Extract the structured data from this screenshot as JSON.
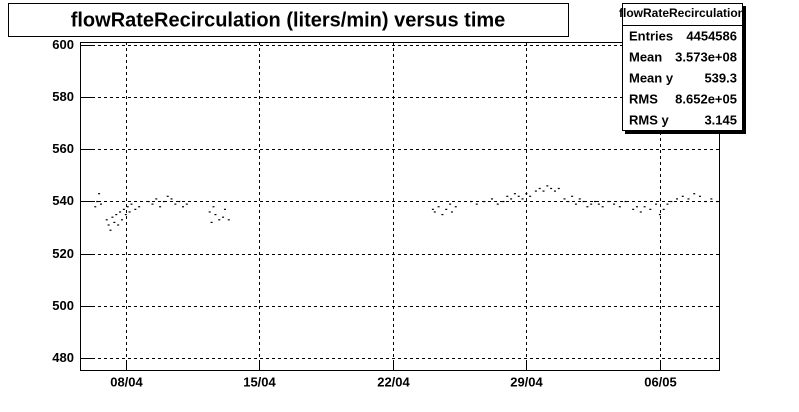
{
  "chart_data": {
    "type": "scatter",
    "title": "flowRateRecirculation (liters/min) versus time",
    "x": [
      6.4,
      6.5,
      6.6,
      6.7,
      7.0,
      7.1,
      7.2,
      7.3,
      7.4,
      7.5,
      7.6,
      7.7,
      7.8,
      7.9,
      8.0,
      8.1,
      8.2,
      8.3,
      8.5,
      8.7,
      9.2,
      9.4,
      9.6,
      9.8,
      10.0,
      10.2,
      10.4,
      10.6,
      10.8,
      11.0,
      11.2,
      12.4,
      12.5,
      12.6,
      12.7,
      12.9,
      13.1,
      13.2,
      13.4,
      24.1,
      24.2,
      24.4,
      24.6,
      24.8,
      25.0,
      25.1,
      25.3,
      26.1,
      26.4,
      26.8,
      27.2,
      27.5,
      27.8,
      28.0,
      28.2,
      28.4,
      28.6,
      28.8,
      29.0,
      29.2,
      29.5,
      29.7,
      29.9,
      30.1,
      30.3,
      30.5,
      30.7,
      31.0,
      31.2,
      31.4,
      31.6,
      31.8,
      32.0,
      32.2,
      32.4,
      32.6,
      32.8,
      33.0,
      33.3,
      33.6,
      33.9,
      34.2,
      34.6,
      34.8,
      35.0,
      35.2,
      35.5,
      35.8,
      36.0,
      36.2,
      36.4,
      36.6,
      36.9,
      37.2,
      37.5,
      37.8,
      38.1,
      38.4,
      38.7,
      39.0
    ],
    "values": [
      538,
      540,
      543,
      539,
      533,
      531,
      529,
      534,
      532,
      535,
      531,
      536,
      533,
      537,
      535,
      538,
      536,
      539,
      537,
      538,
      540,
      539,
      541,
      538,
      540,
      542,
      541,
      539,
      540,
      538,
      539,
      536,
      532,
      538,
      535,
      533,
      534,
      537,
      533,
      537,
      536,
      538,
      535,
      537,
      539,
      536,
      538,
      540,
      539,
      540,
      541,
      539,
      540,
      542,
      541,
      543,
      542,
      541,
      543,
      542,
      544,
      545,
      544,
      546,
      545,
      544,
      545,
      541,
      540,
      542,
      539,
      541,
      540,
      538,
      539,
      540,
      539,
      538,
      540,
      539,
      538,
      540,
      537,
      538,
      536,
      538,
      537,
      539,
      535,
      537,
      539,
      540,
      541,
      542,
      541,
      543,
      542,
      540,
      541,
      540
    ],
    "color": "#000000",
    "xlim": [
      5.6,
      39.1
    ],
    "xticks": [
      {
        "value": 8,
        "label": "08/04"
      },
      {
        "value": 15,
        "label": "15/04"
      },
      {
        "value": 22,
        "label": "22/04"
      },
      {
        "value": 29,
        "label": "29/04"
      },
      {
        "value": 36,
        "label": "06/05"
      }
    ],
    "ylim": [
      475.4,
      601.1
    ],
    "yticks": [
      480,
      500,
      520,
      540,
      560,
      580,
      600
    ],
    "grid": true,
    "stats": {
      "title": "flowRateRecirculation",
      "rows": [
        [
          "Entries",
          "4454586"
        ],
        [
          "Mean",
          "3.573e+08"
        ],
        [
          "Mean y",
          "539.3"
        ],
        [
          "RMS",
          "8.652e+05"
        ],
        [
          "RMS y",
          "3.145"
        ]
      ]
    }
  }
}
